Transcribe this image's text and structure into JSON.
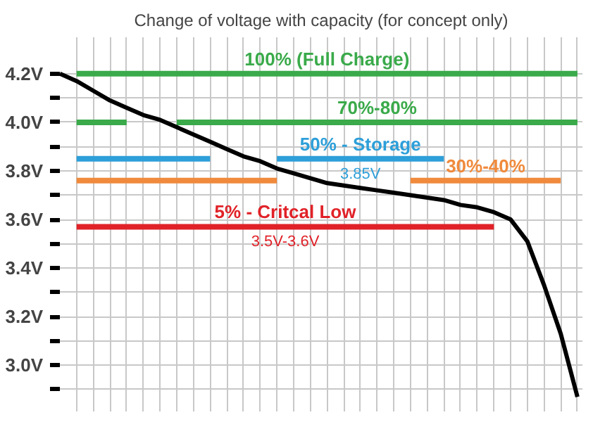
{
  "chart_data": {
    "type": "line",
    "title": "Change of voltage with capacity (for concept only)",
    "categories": [
      null,
      null,
      null,
      null,
      null,
      null,
      null,
      null,
      null,
      null,
      null,
      null,
      null,
      null,
      null,
      null,
      null,
      null,
      null,
      null,
      null,
      null,
      null,
      null,
      null,
      null,
      null,
      null,
      null,
      null,
      null,
      null
    ],
    "ylim": [
      2.81,
      4.35
    ],
    "yticks": [
      {
        "value": 2.9,
        "label": null
      },
      {
        "value": 3.0,
        "label": "3.0V"
      },
      {
        "value": 3.1,
        "label": null
      },
      {
        "value": 3.2,
        "label": "3.2V"
      },
      {
        "value": 3.3,
        "label": null
      },
      {
        "value": 3.4,
        "label": "3.4V"
      },
      {
        "value": 3.5,
        "label": null
      },
      {
        "value": 3.6,
        "label": "3.6V"
      },
      {
        "value": 3.7,
        "label": null
      },
      {
        "value": 3.8,
        "label": "3.8V"
      },
      {
        "value": 3.9,
        "label": null
      },
      {
        "value": 4.0,
        "label": "4.0V"
      },
      {
        "value": 4.1,
        "label": null
      },
      {
        "value": 4.2,
        "label": "4.2V"
      }
    ],
    "grid": true,
    "marker": "none",
    "line_style": "solid",
    "series": [
      {
        "name": "100% (Full Charge)",
        "color": "#3aaa4a",
        "values": [
          null,
          4.2,
          4.2,
          4.2,
          4.2,
          4.2,
          4.2,
          4.2,
          4.2,
          4.2,
          4.2,
          4.2,
          4.2,
          4.2,
          4.2,
          4.2,
          4.2,
          4.2,
          4.2,
          4.2,
          4.2,
          4.2,
          4.2,
          4.2,
          4.2,
          4.2,
          4.2,
          4.2,
          4.2,
          4.2,
          4.2,
          4.2
        ]
      },
      {
        "color": "#3aaa4a",
        "values": [
          null,
          4.0,
          4.0,
          4.0,
          4.0,
          null,
          null,
          null,
          null,
          null,
          null,
          null,
          null,
          null,
          null,
          null,
          null,
          null,
          null,
          null,
          null,
          null,
          null,
          null,
          null,
          null,
          null,
          null,
          null,
          null,
          null,
          null
        ]
      },
      {
        "name": "70%-80%",
        "color": "#3aaa4a",
        "values": [
          null,
          null,
          null,
          null,
          null,
          null,
          null,
          4.0,
          4.0,
          4.0,
          4.0,
          4.0,
          4.0,
          4.0,
          4.0,
          4.0,
          4.0,
          4.0,
          4.0,
          4.0,
          4.0,
          4.0,
          4.0,
          4.0,
          4.0,
          4.0,
          4.0,
          4.0,
          4.0,
          4.0,
          4.0,
          4.0
        ]
      },
      {
        "color": "#2d9fd9",
        "values": [
          null,
          3.85,
          3.85,
          3.85,
          3.85,
          3.85,
          3.85,
          3.85,
          3.85,
          3.85,
          null,
          null,
          null,
          null,
          null,
          null,
          null,
          null,
          null,
          null,
          null,
          null,
          null,
          null,
          null,
          null,
          null,
          null,
          null,
          null,
          null,
          null
        ]
      },
      {
        "name": "50% - Storage",
        "color": "#2d9fd9",
        "values": [
          null,
          null,
          null,
          null,
          null,
          null,
          null,
          null,
          null,
          null,
          null,
          null,
          null,
          3.85,
          3.85,
          3.85,
          3.85,
          3.85,
          3.85,
          3.85,
          3.85,
          3.85,
          3.85,
          3.85,
          null,
          null,
          null,
          null,
          null,
          null,
          null,
          null
        ]
      },
      {
        "color": "#f08a3c",
        "values": [
          null,
          3.76,
          3.76,
          3.76,
          3.76,
          3.76,
          3.76,
          3.76,
          3.76,
          3.76,
          3.76,
          3.76,
          3.76,
          3.76,
          null,
          null,
          null,
          null,
          null,
          null,
          null,
          null,
          null,
          null,
          null,
          null,
          null,
          null,
          null,
          null,
          null,
          null
        ]
      },
      {
        "name": "30%-40%",
        "color": "#f08a3c",
        "values": [
          null,
          null,
          null,
          null,
          null,
          null,
          null,
          null,
          null,
          null,
          null,
          null,
          null,
          null,
          null,
          null,
          null,
          null,
          null,
          null,
          null,
          3.76,
          3.76,
          3.76,
          3.76,
          3.76,
          3.76,
          3.76,
          3.76,
          3.76,
          3.76,
          null
        ]
      },
      {
        "name": "5% - Critcal Low",
        "color": "#e02228",
        "values": [
          null,
          3.57,
          3.57,
          3.57,
          3.57,
          3.57,
          3.57,
          3.57,
          3.57,
          3.57,
          3.57,
          3.57,
          3.57,
          3.57,
          3.57,
          3.57,
          3.57,
          3.57,
          3.57,
          3.57,
          3.57,
          3.57,
          3.57,
          3.57,
          3.57,
          3.57,
          3.57,
          null,
          null,
          null,
          null,
          null
        ]
      },
      {
        "color": "#000000",
        "values": [
          4.2,
          4.17,
          4.13,
          4.09,
          4.06,
          4.03,
          4.01,
          3.98,
          3.95,
          3.92,
          3.89,
          3.86,
          3.84,
          3.81,
          3.79,
          3.77,
          3.75,
          3.74,
          3.73,
          3.72,
          3.71,
          3.7,
          3.69,
          3.68,
          3.66,
          3.65,
          3.63,
          3.6,
          3.51,
          3.33,
          3.13,
          2.87
        ]
      }
    ],
    "annotations": [
      "3.85V",
      "3.5V-3.6V"
    ]
  }
}
